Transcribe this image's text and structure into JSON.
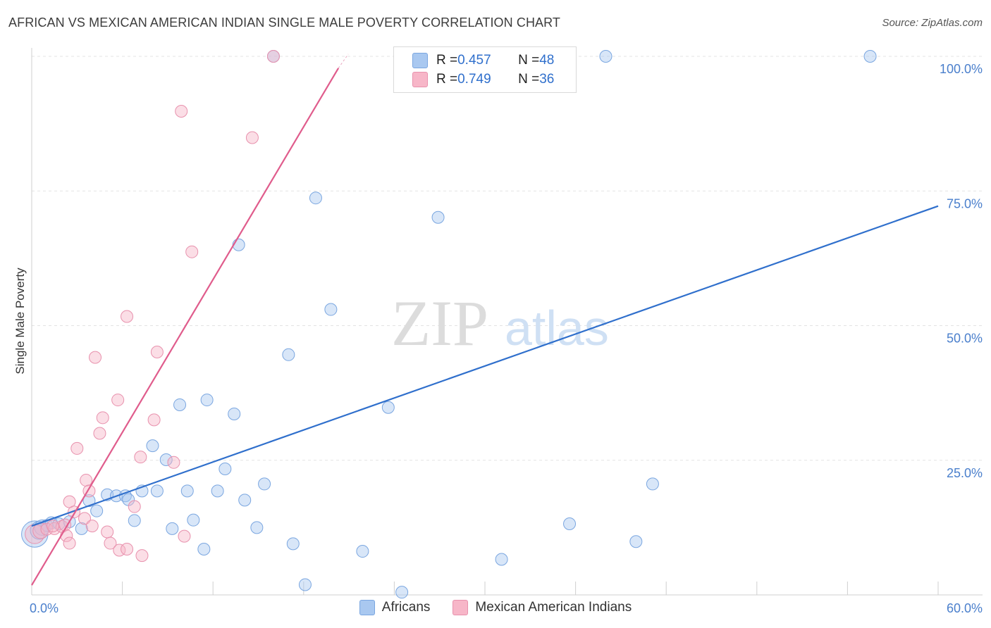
{
  "title": "AFRICAN VS MEXICAN AMERICAN INDIAN SINGLE MALE POVERTY CORRELATION CHART",
  "source": "Source: ZipAtlas.com",
  "watermark": {
    "zip": "ZIP",
    "atlas": "atlas"
  },
  "legend_top": {
    "rows": [
      {
        "r_label": "R = ",
        "r_value": "0.457",
        "n_label": "N = ",
        "n_value": "48",
        "color": "#a9c8f0"
      },
      {
        "r_label": "R = ",
        "r_value": "0.749",
        "n_label": "N = ",
        "n_value": "36",
        "color": "#f7b6c8"
      }
    ]
  },
  "legend_bottom": [
    {
      "label": "Africans",
      "color": "#a9c8f0"
    },
    {
      "label": "Mexican American Indians",
      "color": "#f7b6c8"
    }
  ],
  "chart_data": {
    "type": "scatter",
    "xlabel": "",
    "ylabel": "Single Male Poverty",
    "xlim": [
      0,
      60
    ],
    "ylim": [
      0,
      100
    ],
    "x_tick_labels": [
      "0.0%",
      "60.0%"
    ],
    "y_tick_labels": [
      {
        "value": 25,
        "label": "25.0%"
      },
      {
        "value": 50,
        "label": "50.0%"
      },
      {
        "value": 75,
        "label": "75.0%"
      },
      {
        "value": 100,
        "label": "100.0%"
      }
    ],
    "grid": true,
    "series": [
      {
        "name": "Africans",
        "color": "#a9c8f0",
        "stroke": "#7aa6e0",
        "trend": {
          "color": "#2f6fcc",
          "x": [
            0,
            60
          ],
          "y": [
            12.8,
            72.2
          ]
        },
        "points": [
          [
            0.2,
            11.3,
            2.2
          ],
          [
            0.5,
            12.0,
            1.5
          ],
          [
            0.7,
            12.5,
            1.3
          ],
          [
            1.0,
            12.9,
            1.0
          ],
          [
            1.3,
            13.4,
            1.0
          ],
          [
            1.8,
            13.2,
            1.0
          ],
          [
            2.5,
            13.6,
            1.0
          ],
          [
            3.3,
            12.3,
            1.0
          ],
          [
            3.8,
            17.5,
            1.0
          ],
          [
            4.3,
            15.6,
            1.0
          ],
          [
            5.0,
            18.6,
            1.0
          ],
          [
            5.6,
            18.4,
            1.0
          ],
          [
            6.2,
            18.4,
            1.0
          ],
          [
            6.4,
            17.7,
            1.0
          ],
          [
            6.8,
            13.8,
            1.0
          ],
          [
            7.3,
            19.3,
            1.0
          ],
          [
            8.0,
            27.7,
            1.0
          ],
          [
            8.3,
            19.3,
            1.0
          ],
          [
            8.9,
            25.1,
            1.0
          ],
          [
            9.3,
            12.3,
            1.0
          ],
          [
            9.8,
            35.3,
            1.0
          ],
          [
            10.3,
            19.3,
            1.0
          ],
          [
            10.7,
            13.9,
            1.0
          ],
          [
            11.4,
            8.5,
            1.0
          ],
          [
            11.6,
            36.2,
            1.0
          ],
          [
            12.3,
            19.3,
            1.0
          ],
          [
            12.8,
            23.4,
            1.0
          ],
          [
            13.4,
            33.6,
            1.0
          ],
          [
            13.7,
            65.0,
            1.0
          ],
          [
            14.1,
            17.6,
            1.0
          ],
          [
            14.9,
            12.5,
            1.0
          ],
          [
            15.4,
            20.6,
            1.0
          ],
          [
            16.0,
            100.0,
            1.0
          ],
          [
            17.0,
            44.6,
            1.0
          ],
          [
            17.3,
            9.5,
            1.0
          ],
          [
            18.1,
            1.9,
            1.0
          ],
          [
            18.8,
            73.7,
            1.0
          ],
          [
            19.8,
            53.0,
            1.0
          ],
          [
            21.9,
            8.1,
            1.0
          ],
          [
            23.6,
            34.8,
            1.0
          ],
          [
            24.5,
            0.5,
            1.0
          ],
          [
            26.9,
            70.1,
            1.0
          ],
          [
            31.1,
            6.6,
            1.0
          ],
          [
            35.6,
            13.2,
            1.0
          ],
          [
            38.0,
            100.0,
            1.0
          ],
          [
            40.0,
            9.9,
            1.0
          ],
          [
            41.1,
            20.6,
            1.0
          ],
          [
            55.5,
            100.0,
            1.0
          ]
        ]
      },
      {
        "name": "Mexican American Indians",
        "color": "#f7b6c8",
        "stroke": "#e891ad",
        "trend": {
          "color": "#e05c8c",
          "x": [
            0,
            20.3
          ],
          "y": [
            1.8,
            97.8
          ]
        },
        "points": [
          [
            0.2,
            11.3,
            1.6
          ],
          [
            0.6,
            11.9,
            1.3
          ],
          [
            1.0,
            12.2,
            1.0
          ],
          [
            1.5,
            12.3,
            1.0
          ],
          [
            2.0,
            12.7,
            1.0
          ],
          [
            2.3,
            11.0,
            1.0
          ],
          [
            2.5,
            9.6,
            1.0
          ],
          [
            2.5,
            17.3,
            1.0
          ],
          [
            2.8,
            15.4,
            1.0
          ],
          [
            3.0,
            27.2,
            1.0
          ],
          [
            3.5,
            14.2,
            1.0
          ],
          [
            3.6,
            21.3,
            1.0
          ],
          [
            3.8,
            19.3,
            1.0
          ],
          [
            4.0,
            12.8,
            1.0
          ],
          [
            4.2,
            44.1,
            1.0
          ],
          [
            4.5,
            30.0,
            1.0
          ],
          [
            4.7,
            32.9,
            1.0
          ],
          [
            5.0,
            11.7,
            1.0
          ],
          [
            5.2,
            9.6,
            1.0
          ],
          [
            5.7,
            36.2,
            1.0
          ],
          [
            5.8,
            8.3,
            1.0
          ],
          [
            6.3,
            8.5,
            1.0
          ],
          [
            6.3,
            51.7,
            1.0
          ],
          [
            6.8,
            16.4,
            1.0
          ],
          [
            7.2,
            25.6,
            1.0
          ],
          [
            7.3,
            7.3,
            1.0
          ],
          [
            8.1,
            32.5,
            1.0
          ],
          [
            8.3,
            45.1,
            1.0
          ],
          [
            9.4,
            24.6,
            1.0
          ],
          [
            9.9,
            89.8,
            1.0
          ],
          [
            10.1,
            10.9,
            1.0
          ],
          [
            10.6,
            63.7,
            1.0
          ],
          [
            14.6,
            84.9,
            1.0
          ],
          [
            16.0,
            100.0,
            1.0
          ],
          [
            1.4,
            12.8,
            1.0
          ],
          [
            2.2,
            13.0,
            1.0
          ]
        ]
      }
    ]
  }
}
